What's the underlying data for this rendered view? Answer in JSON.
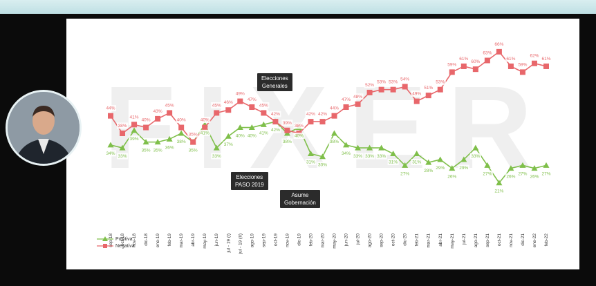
{
  "watermark": [
    "F",
    "I",
    "X",
    "E",
    "R"
  ],
  "legend": {
    "positive_label": "Positiva",
    "negative_label": "Negativa"
  },
  "annotations": {
    "generales": "Elecciones\nGenerales",
    "paso": "Elecciones\nPASO 2019",
    "gobernacion": "Asume\nGobernación"
  },
  "colors": {
    "positive": "#7fbf4a",
    "negative": "#e8676b",
    "background": "#ffffff"
  },
  "chart_data": {
    "type": "line",
    "categories": [
      "sep-18",
      "oct-18",
      "nov-18",
      "dic-18",
      "ene-19",
      "feb-19",
      "mar-19",
      "abr-19",
      "may-19",
      "jun-19",
      "jul - 19 (I)",
      "jul - 19 (II)",
      "ago-19",
      "sep-19",
      "oct-19",
      "nov-19",
      "dic-19",
      "feb-20",
      "mar-20",
      "may-20",
      "jun-20",
      "jul-20",
      "ago-20",
      "sep-20",
      "oct-20",
      "dic-20",
      "feb-21",
      "mar-21",
      "abr-21",
      "may-21",
      "jul-21",
      "ago-21",
      "sep-21",
      "oct-21",
      "nov-21",
      "dic-21",
      "ene-22",
      "feb-22"
    ],
    "series": [
      {
        "name": "Positiva",
        "values": [
          34,
          33,
          39,
          35,
          35,
          36,
          38,
          35,
          41,
          33,
          37,
          40,
          40,
          41,
          42,
          38,
          40,
          31,
          30,
          38,
          34,
          33,
          33,
          33,
          31,
          27,
          31,
          28,
          29,
          26,
          29,
          33,
          27,
          21,
          26,
          27,
          26,
          27
        ]
      },
      {
        "name": "Negativa",
        "values": [
          44,
          38,
          41,
          40,
          43,
          45,
          40,
          35,
          40,
          45,
          46,
          49,
          47,
          45,
          42,
          39,
          38,
          42,
          42,
          44,
          47,
          48,
          52,
          53,
          53,
          54,
          49,
          51,
          53,
          59,
          61,
          60,
          63,
          66,
          61,
          59,
          62,
          61
        ]
      }
    ],
    "ylim": [
      15,
      70
    ],
    "data_labels": true,
    "legend_position": "bottom-left",
    "grid": false
  }
}
